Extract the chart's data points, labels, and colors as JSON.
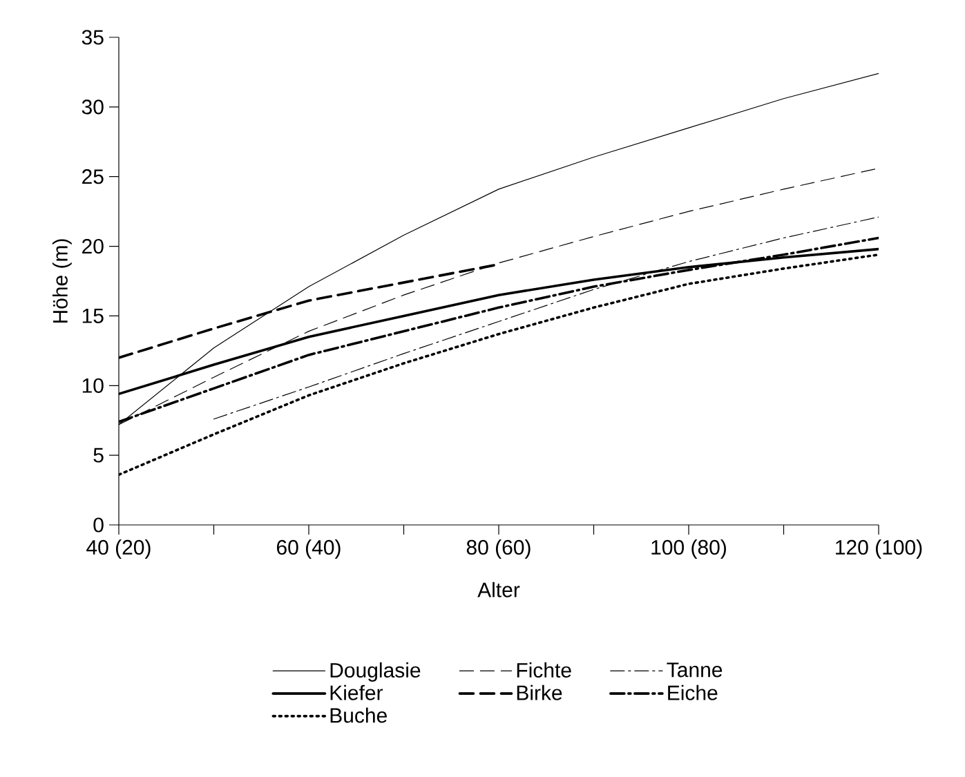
{
  "chart_data": {
    "type": "line",
    "xlabel": "Alter",
    "ylabel": "Höhe (m)",
    "categories": [
      "40 (20)",
      null,
      "60 (40)",
      null,
      "80 (60)",
      null,
      "100 (80)",
      null,
      "120 (100)"
    ],
    "ylim": [
      0,
      35
    ],
    "yticks": [
      0,
      5,
      10,
      15,
      20,
      25,
      30,
      35
    ],
    "legend": "bottom",
    "grid": false,
    "marker": "none",
    "series": [
      {
        "name": "Douglasie",
        "color": "#000000",
        "line_style": "solid",
        "values": [
          7.2,
          12.7,
          17.1,
          20.8,
          24.1,
          26.4,
          28.5,
          30.6,
          32.4
        ]
      },
      {
        "name": "Fichte",
        "color": "#000000",
        "line_style": "dashed",
        "values": [
          7.2,
          10.6,
          13.9,
          16.5,
          18.8,
          20.7,
          22.5,
          24.1,
          25.6
        ]
      },
      {
        "name": "Tanne",
        "color": "#000000",
        "line_style": "dashdot",
        "values": [
          null,
          7.6,
          9.9,
          12.3,
          14.6,
          16.9,
          18.9,
          20.6,
          22.1
        ]
      },
      {
        "name": "Kiefer",
        "color": "#000000",
        "line_style": "solid",
        "values": [
          9.4,
          11.5,
          13.5,
          15.0,
          16.5,
          17.6,
          18.5,
          19.2,
          19.8
        ]
      },
      {
        "name": "Birke",
        "color": "#000000",
        "line_style": "dashed",
        "values": [
          12.0,
          14.1,
          16.1,
          17.4,
          18.7,
          null,
          null,
          null,
          null
        ]
      },
      {
        "name": "Eiche",
        "color": "#000000",
        "line_style": "dashdot",
        "values": [
          7.4,
          9.8,
          12.2,
          13.9,
          15.6,
          17.1,
          18.3,
          19.4,
          20.6
        ]
      },
      {
        "name": "Buche",
        "color": "#000000",
        "line_style": "dotted",
        "values": [
          3.6,
          6.5,
          9.3,
          11.6,
          13.7,
          15.6,
          17.3,
          18.4,
          19.4
        ]
      }
    ]
  }
}
